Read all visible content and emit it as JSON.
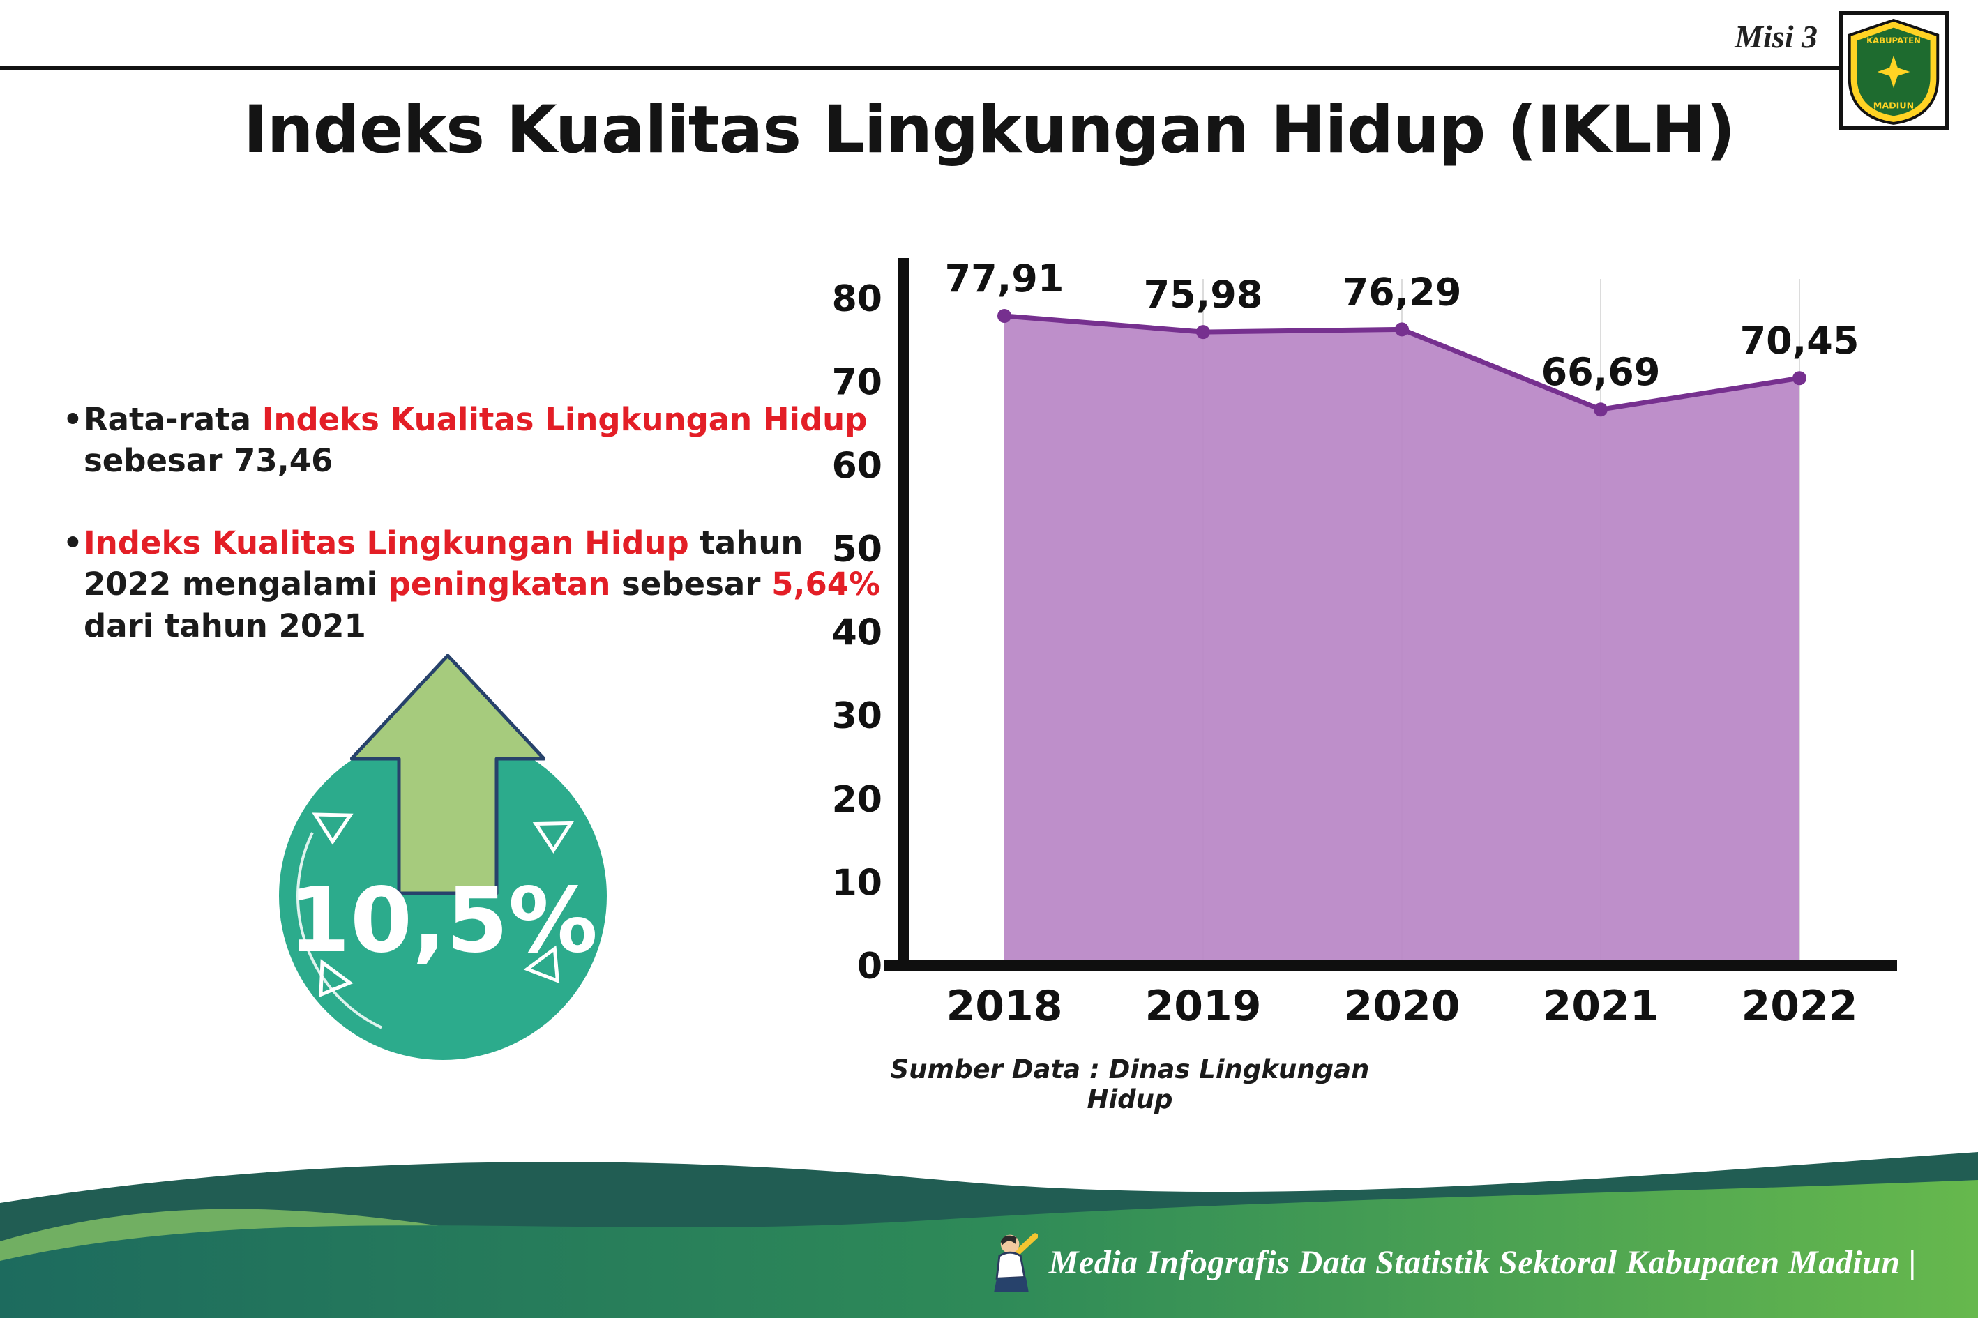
{
  "header": {
    "misi": "Misi 3",
    "title": "Indeks Kualitas Lingkungan Hidup (IKLH)"
  },
  "logo": {
    "top_text": "KABUPATEN",
    "bottom_text": "MADIUN"
  },
  "bullets": [
    {
      "marker": "•",
      "segments": [
        {
          "text": "Rata-rata ",
          "color": "black"
        },
        {
          "text": "Indeks Kualitas Lingkungan Hidup",
          "color": "red"
        },
        {
          "text": " sebesar 73,46",
          "color": "black"
        }
      ]
    },
    {
      "marker": "•",
      "segments": [
        {
          "text": "Indeks Kualitas Lingkungan Hidup",
          "color": "red"
        },
        {
          "text": " tahun 2022 mengalami ",
          "color": "black"
        },
        {
          "text": "peningkatan",
          "color": "red"
        },
        {
          "text": " sebesar ",
          "color": "black"
        },
        {
          "text": "5,64%",
          "color": "red"
        },
        {
          "text": " dari tahun 2021",
          "color": "black"
        }
      ]
    }
  ],
  "badge": {
    "value": "10,5%"
  },
  "chart_data": {
    "type": "area",
    "categories": [
      "2018",
      "2019",
      "2020",
      "2021",
      "2022"
    ],
    "values": [
      77.91,
      75.98,
      76.29,
      66.69,
      70.45
    ],
    "value_labels": [
      "77,91",
      "75,98",
      "76,29",
      "66,69",
      "70,45"
    ],
    "title": "",
    "xlabel": "",
    "ylabel": "",
    "ylim": [
      0,
      80
    ],
    "yticks": [
      0,
      10,
      20,
      30,
      40,
      50,
      60,
      70,
      80
    ],
    "grid": "vertical-light",
    "legend": "none",
    "area_color": "#b886c6",
    "line_color": "#76308f",
    "source": "Sumber Data : Dinas Lingkungan Hidup"
  },
  "footer": {
    "text": "Media Infografis Data Statistik Sektoral Kabupaten Madiun |"
  },
  "theme": {
    "accent_red": "#e31e26",
    "badge_teal": "#2cab8c",
    "arrow_green": "#a6cb7d",
    "arrow_outline": "#27426b",
    "footer_teal": "#215d53",
    "footer_green": "#66b84d"
  }
}
